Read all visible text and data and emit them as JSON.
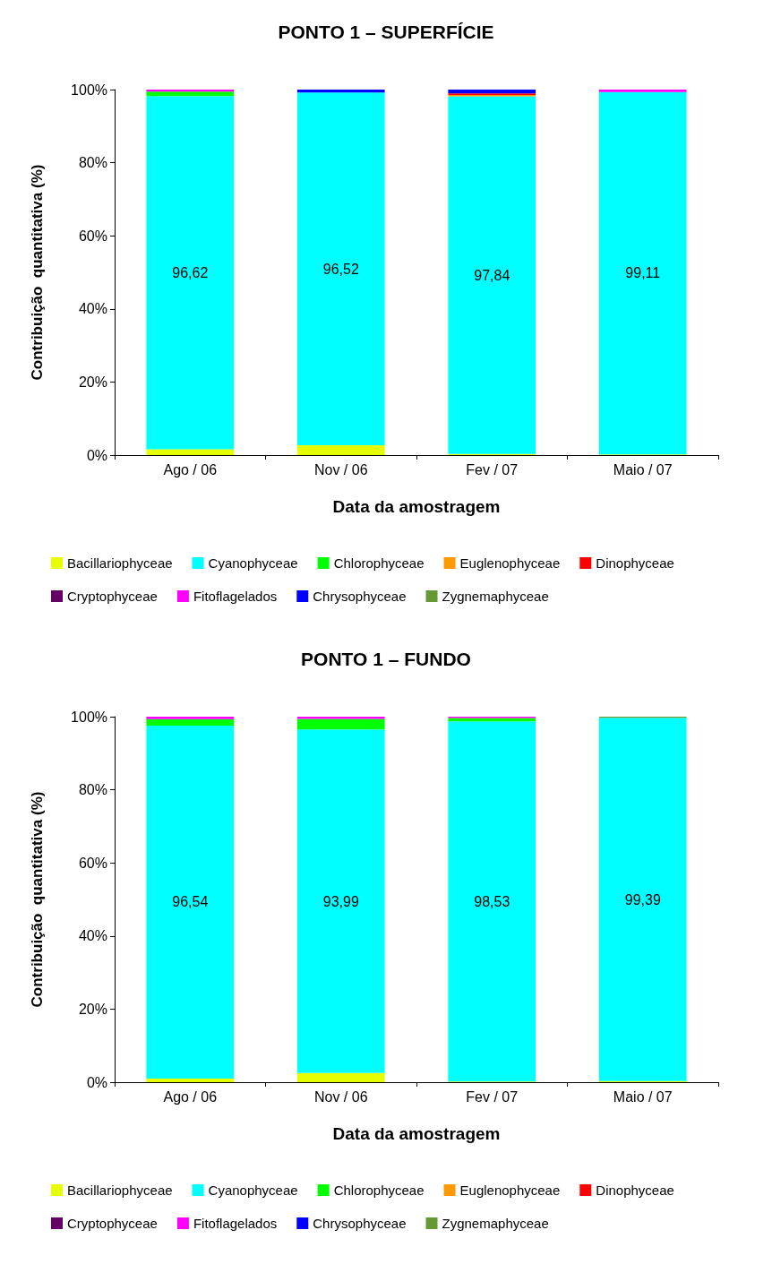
{
  "chart_data": [
    {
      "type": "bar",
      "title": "PONTO 1 – SUPERFÍCIE",
      "xlabel": "Data da amostragem",
      "ylabel": "Contribuição  quantitativa (%)",
      "categories": [
        "Ago / 06",
        "Nov / 06",
        "Fev / 07",
        "Maio / 07"
      ],
      "stacked": true,
      "ylim": [
        0,
        100
      ],
      "yticks": [
        {
          "value": 0,
          "label": "0%"
        },
        {
          "value": 20,
          "label": "20%"
        },
        {
          "value": 40,
          "label": "40%"
        },
        {
          "value": 60,
          "label": "60%"
        },
        {
          "value": 80,
          "label": "80%"
        },
        {
          "value": 100,
          "label": "100%"
        }
      ],
      "grid": false,
      "legend": "bottom",
      "series": [
        {
          "name": "Bacillariophyceae",
          "color": "#e6ff00",
          "values": [
            1.6,
            2.7,
            0.3,
            0.2
          ]
        },
        {
          "name": "Cyanophyceae",
          "color": "#00ffff",
          "values": [
            96.62,
            96.52,
            97.84,
            99.11
          ],
          "value_labels": [
            "96,62",
            "96,52",
            "97,84",
            "99,11"
          ]
        },
        {
          "name": "Chlorophyceae",
          "color": "#00ff00",
          "values": [
            1.2,
            0,
            0,
            0
          ]
        },
        {
          "name": "Euglenophyceae",
          "color": "#ff9900",
          "values": [
            0,
            0,
            0.4,
            0
          ]
        },
        {
          "name": "Dinophyceae",
          "color": "#ff0000",
          "values": [
            0,
            0,
            0.4,
            0
          ]
        },
        {
          "name": "Cryptophyceae",
          "color": "#660066",
          "values": [
            0,
            0,
            0,
            0
          ]
        },
        {
          "name": "Fitoflagelados",
          "color": "#ff00ff",
          "values": [
            0.6,
            0,
            0,
            0.7
          ]
        },
        {
          "name": "Chrysophyceae",
          "color": "#0000ff",
          "values": [
            0,
            0.8,
            1.1,
            0
          ]
        },
        {
          "name": "Zygnemaphyceae",
          "color": "#669933",
          "values": [
            0,
            0,
            0,
            0
          ]
        }
      ]
    },
    {
      "type": "bar",
      "title": "PONTO 1 – FUNDO",
      "xlabel": "Data da amostragem",
      "ylabel": "Contribuição  quantitativa (%)",
      "categories": [
        "Ago / 06",
        "Nov / 06",
        "Fev / 07",
        "Maio / 07"
      ],
      "stacked": true,
      "ylim": [
        0,
        100
      ],
      "yticks": [
        {
          "value": 0,
          "label": "0%"
        },
        {
          "value": 20,
          "label": "20%"
        },
        {
          "value": 40,
          "label": "40%"
        },
        {
          "value": 60,
          "label": "60%"
        },
        {
          "value": 80,
          "label": "80%"
        },
        {
          "value": 100,
          "label": "100%"
        }
      ],
      "grid": false,
      "legend": "bottom",
      "series": [
        {
          "name": "Bacillariophyceae",
          "color": "#e6ff00",
          "values": [
            1.0,
            2.5,
            0.2,
            0.3
          ]
        },
        {
          "name": "Cyanophyceae",
          "color": "#00ffff",
          "values": [
            96.54,
            93.99,
            98.53,
            99.39
          ],
          "value_labels": [
            "96,54",
            "93,99",
            "98,53",
            "99,39"
          ]
        },
        {
          "name": "Chlorophyceae",
          "color": "#00ff00",
          "values": [
            1.8,
            2.9,
            0.9,
            0
          ]
        },
        {
          "name": "Euglenophyceae",
          "color": "#ff9900",
          "values": [
            0,
            0,
            0,
            0
          ]
        },
        {
          "name": "Dinophyceae",
          "color": "#ff0000",
          "values": [
            0,
            0,
            0,
            0
          ]
        },
        {
          "name": "Cryptophyceae",
          "color": "#660066",
          "values": [
            0,
            0,
            0,
            0
          ]
        },
        {
          "name": "Fitoflagelados",
          "color": "#ff00ff",
          "values": [
            0.7,
            0.6,
            0.4,
            0
          ]
        },
        {
          "name": "Chrysophyceae",
          "color": "#0000ff",
          "values": [
            0,
            0,
            0,
            0
          ]
        },
        {
          "name": "Zygnemaphyceae",
          "color": "#669933",
          "values": [
            0,
            0,
            0,
            0.3
          ]
        }
      ]
    }
  ]
}
